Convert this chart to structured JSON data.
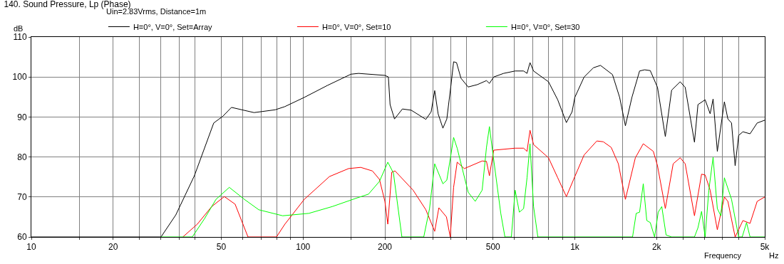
{
  "chart_data": {
    "type": "line",
    "title": "140. Sound Pressure, Lp (Phase)",
    "xlabel": "Frequency",
    "ylabel": "dB",
    "annotations": [
      "Uin=2.83Vrms, Distance=1m",
      "Hz"
    ],
    "log": "x",
    "grid": true,
    "legend": "top left",
    "line_style": "solid",
    "marker": "none",
    "xlim": [
      10,
      5000
    ],
    "ylim": [
      60,
      110
    ],
    "yticks": [
      60,
      70,
      80,
      90,
      100,
      110
    ],
    "xticks": [
      10,
      {
        "value": 15,
        "label": null
      },
      20,
      {
        "value": 25,
        "label": null
      },
      {
        "value": 30,
        "label": null
      },
      {
        "value": 35,
        "label": null
      },
      {
        "value": 40,
        "label": null
      },
      50,
      {
        "value": 60,
        "label": null
      },
      {
        "value": 70,
        "label": null
      },
      {
        "value": 80,
        "label": null
      },
      {
        "value": 90,
        "label": null
      },
      100,
      {
        "value": 150,
        "label": null
      },
      200,
      {
        "value": 250,
        "label": null
      },
      {
        "value": 300,
        "label": null
      },
      {
        "value": 350,
        "label": null
      },
      {
        "value": 400,
        "label": null
      },
      500,
      {
        "value": 600,
        "label": null
      },
      {
        "value": 700,
        "label": null
      },
      {
        "value": 800,
        "label": null
      },
      {
        "value": 900,
        "label": null
      },
      {
        "value": 1000,
        "label": "1k"
      },
      {
        "value": 1500,
        "label": null
      },
      {
        "value": 2000,
        "label": "2k"
      },
      {
        "value": 2500,
        "label": null
      },
      {
        "value": 3000,
        "label": null
      },
      {
        "value": 3500,
        "label": null
      },
      {
        "value": 4000,
        "label": null
      },
      {
        "value": 5000,
        "label": "5k"
      }
    ],
    "series": [
      {
        "name": "H=0°, V=0°, Set=Array",
        "color": "#000000",
        "x": [
          10,
          30,
          34,
          39.8,
          46.9,
          50.7,
          54.5,
          66,
          79,
          85.7,
          101,
          123,
          150,
          160,
          200,
          206,
          209,
          217,
          232,
          250,
          283,
          296,
          305,
          314,
          327,
          338,
          350,
          358,
          367,
          381,
          405,
          438,
          473,
          485,
          503,
          547,
          603,
          648,
          667,
          684,
          705,
          800,
          865,
          931,
          977,
          1000,
          1082,
          1170,
          1243,
          1376,
          1462,
          1535,
          1622,
          1731,
          1806,
          1895,
          2015,
          2153,
          2271,
          2442,
          2548,
          2756,
          2839,
          3017,
          3148,
          3227,
          3345,
          3551,
          3658,
          3773,
          3890,
          4008,
          4155,
          4414,
          4689,
          5000
        ],
        "values": [
          60,
          60,
          65.5,
          75.3,
          88.5,
          90.2,
          92.4,
          91.1,
          91.8,
          92.6,
          94.9,
          97.9,
          100.7,
          100.9,
          100.4,
          100,
          93.1,
          89.5,
          92,
          91.7,
          89.4,
          91.3,
          96.6,
          90.8,
          87.2,
          89.5,
          97.9,
          103.8,
          103.6,
          99.7,
          97.5,
          98.1,
          99.1,
          98.4,
          100,
          100.9,
          101.5,
          101.5,
          100.9,
          103.6,
          101.5,
          98.8,
          94.3,
          88.6,
          91.3,
          94.9,
          100,
          102.3,
          102.9,
          100.6,
          94.9,
          87.8,
          94.9,
          101.5,
          101.8,
          101.6,
          97.4,
          85.1,
          96.7,
          98.8,
          97.4,
          83.7,
          93.1,
          94.3,
          90.8,
          94.5,
          81.4,
          93.8,
          89.5,
          88.5,
          77.8,
          85.4,
          86.3,
          85.8,
          88.5,
          89.2
        ]
      },
      {
        "name": "H=0°, V=0°, Set=10",
        "color": "#ff0000",
        "x": [
          36.1,
          40.8,
          46.1,
          51.3,
          56.2,
          62.7,
          79.8,
          85.7,
          101,
          125,
          147,
          163,
          180,
          191,
          200,
          205,
          212,
          218,
          254,
          283,
          305,
          316,
          337,
          348,
          358,
          369,
          392,
          456,
          473,
          485,
          503,
          603,
          648,
          667,
          684,
          705,
          800,
          865,
          931,
          1000,
          1082,
          1205,
          1273,
          1361,
          1446,
          1535,
          1670,
          1786,
          1945,
          2015,
          2153,
          2301,
          2442,
          2548,
          2756,
          2927,
          3017,
          3148,
          3345,
          3551,
          3658,
          3890,
          4155,
          4414,
          4689,
          5000
        ],
        "values": [
          60,
          63.2,
          67.6,
          70.1,
          68.2,
          60,
          60,
          63.2,
          69.4,
          75.1,
          77.1,
          77.4,
          76.5,
          74.4,
          68.9,
          63.2,
          76.2,
          76.5,
          71.7,
          66.8,
          61.4,
          67.3,
          65,
          60,
          72.4,
          78.7,
          77.1,
          79,
          78.9,
          75.3,
          81.7,
          82.2,
          82.2,
          81.4,
          86.7,
          83.1,
          79.8,
          74.8,
          70.1,
          75.1,
          80.5,
          84,
          83.8,
          82.4,
          78.3,
          69.4,
          79.8,
          83.3,
          81.4,
          77.8,
          67.1,
          78.3,
          79.8,
          78.3,
          65.3,
          75.7,
          75.5,
          71.7,
          61.8,
          70,
          68.9,
          60,
          64.1,
          63.4,
          68.9,
          70
        ]
      },
      {
        "name": "H=0°, V=0°, Set=30",
        "color": "#00ff00",
        "x": [
          30,
          39.1,
          43.4,
          47.8,
          53.5,
          60.8,
          68.7,
          84.1,
          105,
          128,
          157,
          174,
          191,
          205,
          215,
          231,
          278,
          292,
          305,
          327,
          338,
          350,
          358,
          369,
          405,
          430,
          456,
          473,
          485,
          500,
          534,
          553,
          584,
          603,
          625,
          648,
          667,
          684,
          705,
          731,
          1631,
          1682,
          1731,
          1786,
          1840,
          1895,
          1966,
          2027,
          2089,
          2167,
          2271,
          2756,
          2839,
          2927,
          3017,
          3113,
          3227,
          3345,
          3446,
          3551,
          3773,
          4008,
          4130,
          4285,
          4414,
          5000
        ],
        "values": [
          60,
          60,
          64.6,
          69.4,
          72.4,
          69.4,
          66.8,
          65.3,
          65.9,
          67.6,
          69.7,
          70.7,
          73.9,
          78.7,
          76,
          60,
          60,
          67.1,
          78.3,
          73.3,
          74.2,
          80.6,
          84.9,
          82.2,
          71.2,
          68.9,
          71.7,
          82.4,
          87.6,
          80.6,
          65.9,
          60,
          60,
          71.7,
          66.2,
          67.1,
          74.8,
          83.3,
          67.6,
          60,
          60,
          65.9,
          66.2,
          73.3,
          64.1,
          63.6,
          60,
          66.2,
          67.6,
          60.5,
          60,
          60,
          62.3,
          66.4,
          60,
          71.7,
          79.9,
          67.1,
          65.3,
          74.8,
          69.4,
          60,
          60,
          63.6,
          60,
          60
        ]
      }
    ]
  }
}
